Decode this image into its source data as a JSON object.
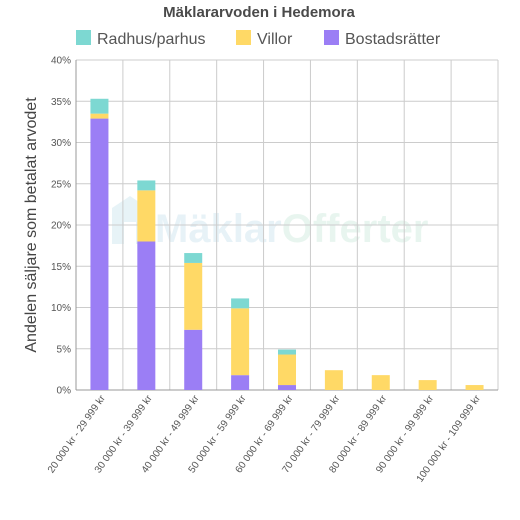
{
  "chart_data": {
    "type": "bar",
    "stacked": true,
    "title": "Mäklararvoden i Hedemora",
    "ylabel": "Andelen säljare som betalat arvodet",
    "xlabel": "",
    "ylim": [
      0,
      40
    ],
    "y_ticks": [
      "0%",
      "5%",
      "10%",
      "15%",
      "20%",
      "25%",
      "30%",
      "35%",
      "40%"
    ],
    "categories": [
      "20 000 kr - 29 999 kr",
      "30 000 kr - 39 999 kr",
      "40 000 kr - 49 999 kr",
      "50 000 kr - 59 999 kr",
      "60 000 kr - 69 999 kr",
      "70 000 kr - 79 999 kr",
      "80 000 kr - 89 999 kr",
      "90 000 kr - 99 999 kr",
      "100 000 kr - 109 999 kr"
    ],
    "series": [
      {
        "name": "Bostadsrätter",
        "color": "#9b7ef5",
        "values": [
          32.9,
          18.0,
          7.3,
          1.8,
          0.6,
          0,
          0,
          0,
          0
        ]
      },
      {
        "name": "Villor",
        "color": "#ffd966",
        "values": [
          0.6,
          6.2,
          8.1,
          8.1,
          3.7,
          2.4,
          1.8,
          1.2,
          0.6
        ]
      },
      {
        "name": "Radhus/parhus",
        "color": "#7dd8d2",
        "values": [
          1.8,
          1.2,
          1.2,
          1.2,
          0.6,
          0,
          0,
          0,
          0
        ]
      }
    ],
    "legend_order": [
      "Radhus/parhus",
      "Villor",
      "Bostadsrätter"
    ],
    "legend_position": "top",
    "grid": true
  },
  "watermark": {
    "text_a": "Mäklar",
    "text_b": "Offerter"
  }
}
